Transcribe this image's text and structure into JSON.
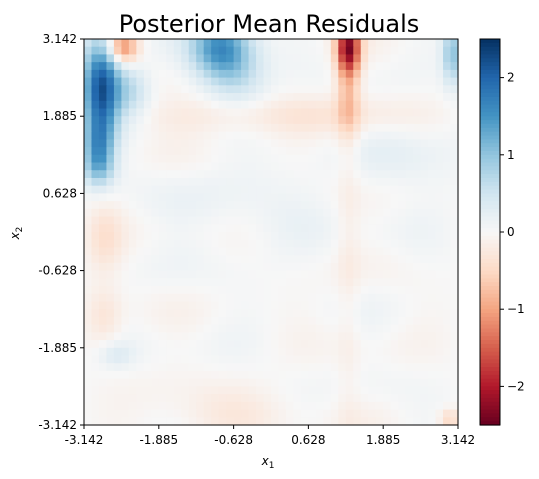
{
  "chart_data": {
    "type": "heatmap",
    "title": "Posterior Mean Residuals",
    "xlabel": "x",
    "xlabel_sub": "1",
    "ylabel": "x",
    "ylabel_sub": "2",
    "xlim": [
      -3.142,
      3.142
    ],
    "ylim": [
      -3.142,
      3.142
    ],
    "x_ticks": [
      -3.142,
      -1.885,
      -0.628,
      0.628,
      1.885,
      3.142
    ],
    "x_tick_labels": [
      "-3.142",
      "-1.885",
      "-0.628",
      "0.628",
      "1.885",
      "3.142"
    ],
    "y_ticks": [
      -3.142,
      -1.885,
      -0.628,
      0.628,
      1.885,
      3.142
    ],
    "y_tick_labels": [
      "-3.142",
      "-1.885",
      "-0.628",
      "0.628",
      "1.885",
      "3.142"
    ],
    "colormap": "RdBu",
    "color_range": [
      -2.5,
      2.5
    ],
    "colorbar_ticks": [
      -2,
      -1,
      0,
      1,
      2
    ],
    "colorbar_tick_labels": [
      "−2",
      "−1",
      "0",
      "1",
      "2"
    ],
    "grid": false,
    "legend": "colorbar-right",
    "grid_size": 50,
    "features": [
      {
        "x": -2.85,
        "y": 2.35,
        "sx": 0.22,
        "sy": 0.55,
        "value": 2.2
      },
      {
        "x": -2.9,
        "y": 1.35,
        "sx": 0.18,
        "sy": 0.35,
        "value": 1.2
      },
      {
        "x": -2.5,
        "y": 3.0,
        "sx": 0.18,
        "sy": 0.18,
        "value": -1.3
      },
      {
        "x": -2.35,
        "y": 2.3,
        "sx": 0.22,
        "sy": 0.3,
        "value": 0.6
      },
      {
        "x": -0.85,
        "y": 3.0,
        "sx": 0.35,
        "sy": 0.35,
        "value": 1.5
      },
      {
        "x": -0.55,
        "y": 2.55,
        "sx": 0.35,
        "sy": 0.35,
        "value": 0.5
      },
      {
        "x": 1.3,
        "y": 3.0,
        "sx": 0.14,
        "sy": 0.3,
        "value": -2.1
      },
      {
        "x": 1.3,
        "y": 2.2,
        "sx": 0.14,
        "sy": 0.5,
        "value": -0.6
      },
      {
        "x": 1.3,
        "y": -0.4,
        "sx": 0.14,
        "sy": 2.6,
        "value": -0.15
      },
      {
        "x": 3.05,
        "y": 2.9,
        "sx": 0.12,
        "sy": 0.35,
        "value": 1.0
      },
      {
        "x": -0.9,
        "y": 1.9,
        "sx": 1.1,
        "sy": 0.22,
        "value": -0.25
      },
      {
        "x": 1.3,
        "y": 1.9,
        "sx": 1.0,
        "sy": 0.22,
        "value": -0.2
      },
      {
        "x": -2.8,
        "y": -0.1,
        "sx": 0.22,
        "sy": 0.4,
        "value": -0.35
      },
      {
        "x": -2.8,
        "y": -1.4,
        "sx": 0.22,
        "sy": 0.35,
        "value": -0.35
      },
      {
        "x": -0.8,
        "y": -3.0,
        "sx": 0.8,
        "sy": 0.3,
        "value": -0.25
      },
      {
        "x": -2.9,
        "y": 1.0,
        "sx": 0.2,
        "sy": 0.2,
        "value": 0.4
      },
      {
        "x": -2.6,
        "y": -2.0,
        "sx": 0.2,
        "sy": 0.15,
        "value": 0.3
      },
      {
        "x": 3.0,
        "y": -3.05,
        "sx": 0.12,
        "sy": 0.12,
        "value": -0.5
      },
      {
        "x": 2.4,
        "y": 1.3,
        "sx": 0.6,
        "sy": 0.4,
        "value": 0.2
      },
      {
        "x": -0.3,
        "y": 0.4,
        "sx": 1.2,
        "sy": 0.5,
        "value": 0.12
      }
    ]
  }
}
